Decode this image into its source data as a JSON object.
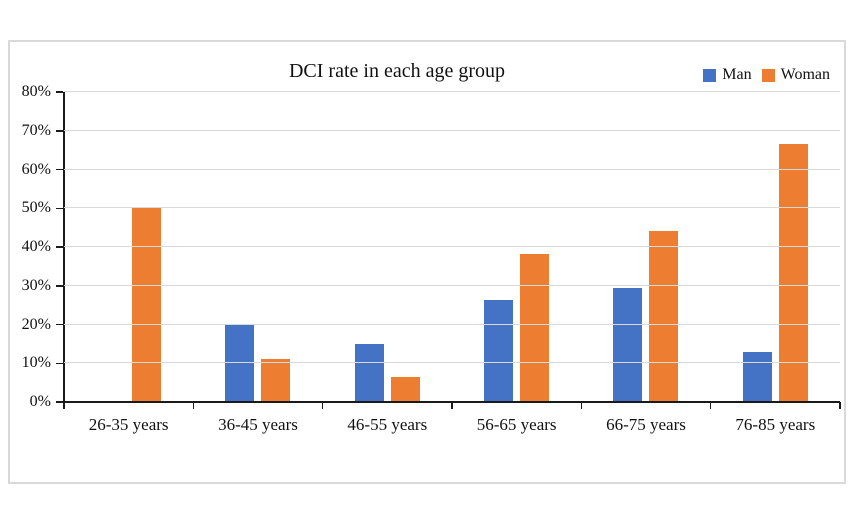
{
  "chart_data": {
    "type": "bar",
    "title": "DCI rate in each age group",
    "categories": [
      "26-35 years",
      "36-45 years",
      "46-55 years",
      "56-65 years",
      "66-75 years",
      "76-85 years"
    ],
    "series": [
      {
        "name": "Man",
        "color": "#4472C4",
        "values": [
          0,
          20,
          15,
          26.3,
          29.4,
          13
        ]
      },
      {
        "name": "Woman",
        "color": "#ED7D31",
        "values": [
          50,
          11.1,
          6.5,
          38.2,
          44.1,
          66.7
        ]
      }
    ],
    "xlabel": "",
    "ylabel": "",
    "y_axis": {
      "min": 0,
      "max": 80,
      "step": 10,
      "tick_labels": [
        "0%",
        "10%",
        "20%",
        "30%",
        "40%",
        "50%",
        "60%",
        "70%",
        "80%"
      ]
    },
    "grid": true,
    "legend_position": "top-right",
    "colors": {
      "frame_border": "#d9d9d9",
      "gridline": "#d9d9d9",
      "axis": "#1a1a1a",
      "text": "#111111",
      "background": "#ffffff"
    }
  }
}
